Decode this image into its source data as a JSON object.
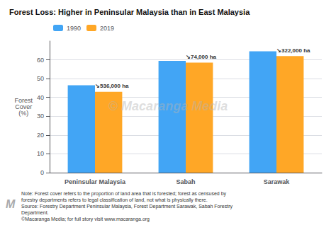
{
  "chart_data": {
    "type": "bar",
    "title": "Forest Loss: Higher in Peninsular Malaysia than in East Malaysia",
    "categories": [
      "Peninsular Malaysia",
      "Sabah",
      "Sarawak"
    ],
    "series": [
      {
        "name": "1990",
        "color": "#42A5F5",
        "values": [
          46.5,
          59.5,
          64.5
        ]
      },
      {
        "name": "2019",
        "color": "#FFA726",
        "values": [
          43.0,
          58.5,
          62.0
        ]
      }
    ],
    "ylabel": "Forest\nCover\n(%)",
    "ylim": [
      0,
      70
    ],
    "yticks": [
      0,
      10,
      20,
      30,
      40,
      50,
      60
    ],
    "grid": true,
    "legend": "upper left",
    "annotations": [
      {
        "category": "Peninsular Malaysia",
        "series": "2019",
        "text": "↘536,000 ha"
      },
      {
        "category": "Sabah",
        "series": "2019",
        "text": "↘74,000 ha"
      },
      {
        "category": "Sarawak",
        "series": "2019",
        "text": "↘322,000 ha"
      }
    ],
    "watermark": "© Macaranga Media",
    "logo": "M",
    "note": "Note: Forest cover refers to the proportion of land area that is forested; forest as censused by\nforestry departments refers to legal classification of land, not what is physically there.\nSource: Forestry Department Peninsular Malaysia, Forest Department Sarawak, Sabah Forestry\nDepartment.\n©Macaranga Media; for full story visit www.macaranga.org"
  }
}
